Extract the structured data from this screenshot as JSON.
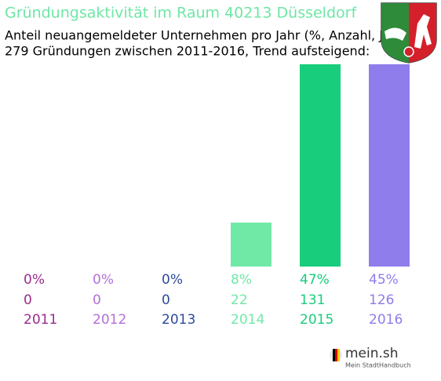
{
  "chart_data": {
    "type": "bar",
    "title": "Gründungsaktivität im Raum 40213 Düsseldorf",
    "subtitle": [
      "Anteil neuangemeldeter Unternehmen pro Jahr (%, Anzahl, Jahr)",
      "279 Gründungen zwischen 2011-2016, Trend aufsteigend:"
    ],
    "categories": [
      "2011",
      "2012",
      "2013",
      "2014",
      "2015",
      "2016"
    ],
    "values": [
      0,
      0,
      0,
      22,
      131,
      126
    ],
    "shares": [
      0,
      0,
      0,
      8,
      47,
      45
    ],
    "share_labels": [
      "0%",
      "0%",
      "0%",
      "8%",
      "47%",
      "45%"
    ],
    "colors": [
      "#9b2a8c",
      "#b46fd6",
      "#2b4a9c",
      "#70e9a7",
      "#18cd7c",
      "#8f7deb"
    ]
  },
  "logo": {
    "name": "mein.sh",
    "tagline": "Mein StadtHandbuch"
  }
}
